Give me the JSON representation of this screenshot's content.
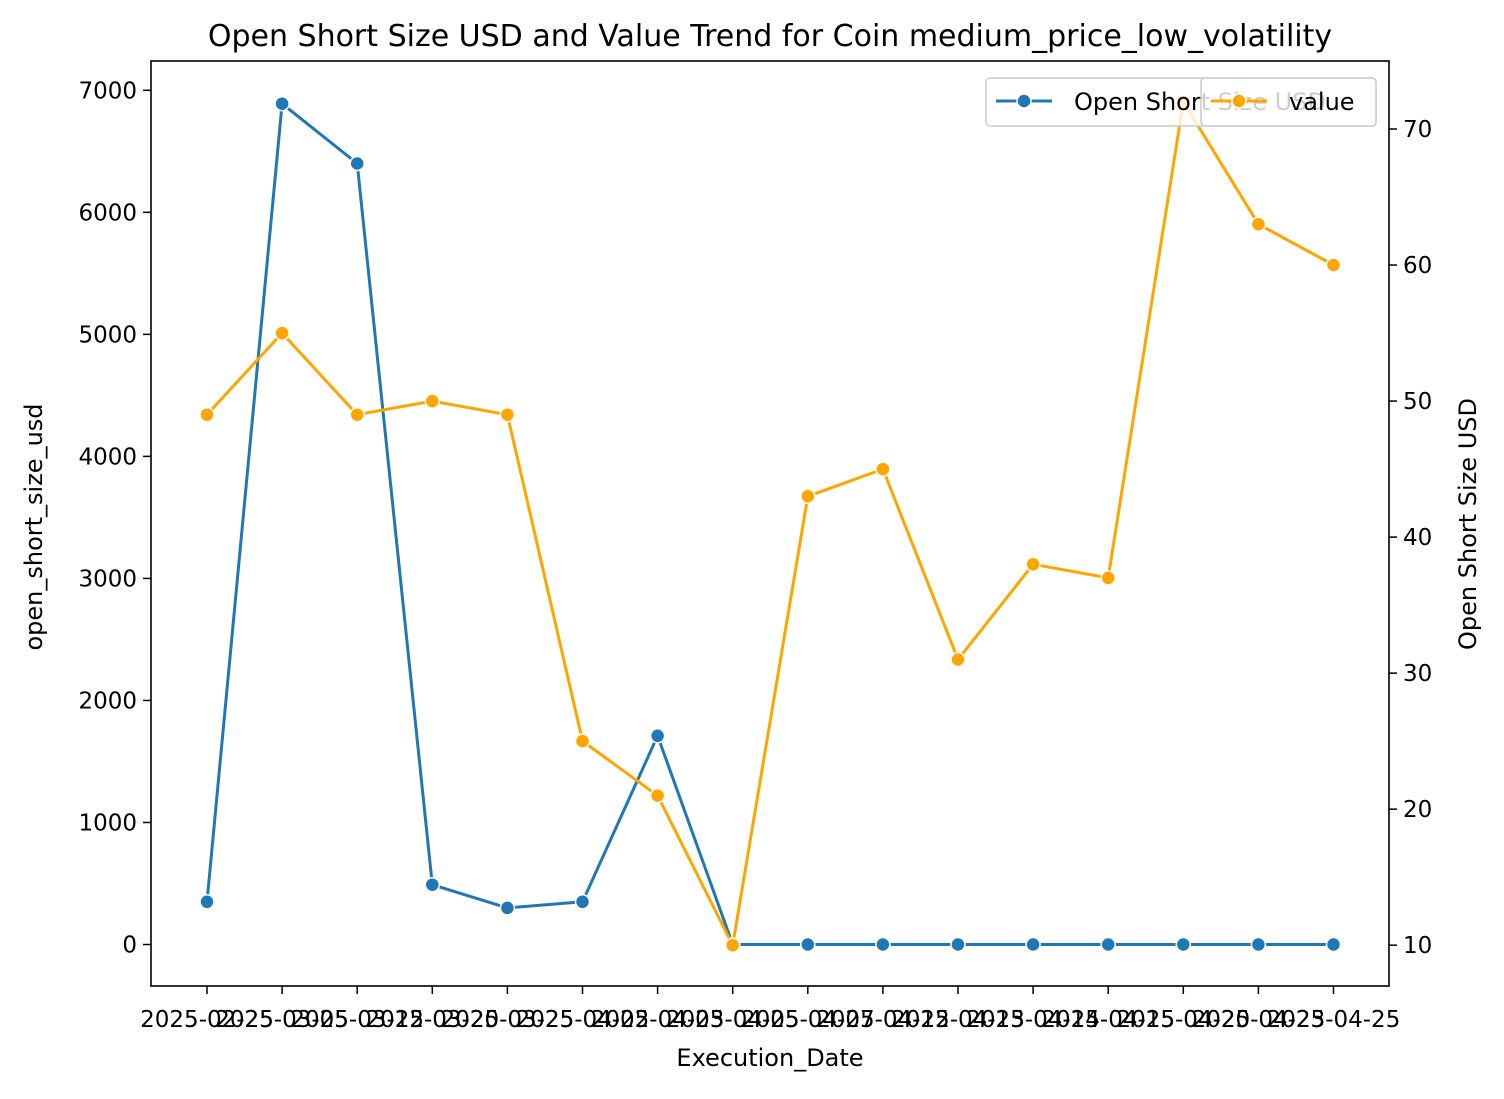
{
  "chart_data": {
    "type": "line",
    "title": "Open Short Size USD and Value Trend for Coin medium_price_low_volatility",
    "xlabel": "Execution_Date",
    "ylabel_left": "open_short_size_usd",
    "ylabel_right": "Open Short Size USD",
    "x_tick_labels": [
      "2025-02-25",
      "2025-03-05",
      "2025-03-12",
      "2025-03-20",
      "2025-03-25",
      "2025-04-02",
      "2025-04-03",
      "2025-04-05",
      "2025-04-07",
      "2025-04-12",
      "2025-04-13",
      "2025-04-14",
      "2025-04-15",
      "2025-04-20",
      "2025-04-23",
      "2025-04-25"
    ],
    "series": [
      {
        "name": "Open Short Size USD",
        "axis": "left",
        "color": "#1f77b4",
        "values": [
          350,
          6890,
          6400,
          490,
          300,
          350,
          1710,
          0,
          0,
          0,
          0,
          0,
          0,
          0,
          0,
          0
        ]
      },
      {
        "name": "value",
        "axis": "right",
        "color": "#ffa500",
        "values": [
          49,
          55,
          49,
          50,
          49,
          25,
          21,
          10,
          43,
          45,
          31,
          38,
          37,
          72,
          63,
          60
        ]
      }
    ],
    "ylim_left": [
      -340,
      7240
    ],
    "ylim_right": [
      7,
      75
    ],
    "yticks_left": [
      0,
      1000,
      2000,
      3000,
      4000,
      5000,
      6000,
      7000
    ],
    "yticks_right": [
      10,
      20,
      30,
      40,
      50,
      60,
      70
    ],
    "legend_left": {
      "placement": "top-right",
      "label": "Open Short Size USD"
    },
    "legend_right": {
      "placement": "top-right",
      "label": "value"
    },
    "grid": false
  }
}
